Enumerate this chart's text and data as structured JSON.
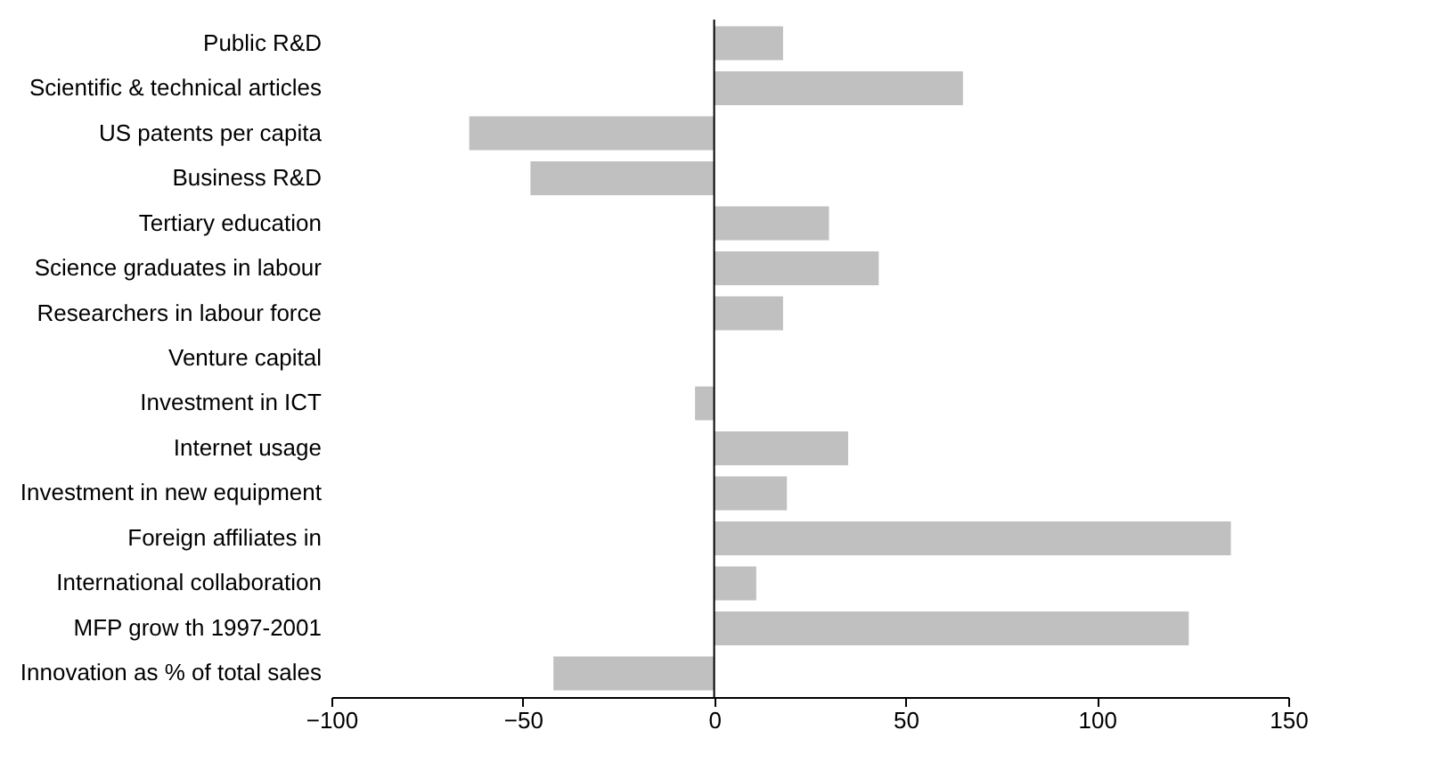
{
  "chart_data": {
    "type": "bar",
    "orientation": "horizontal",
    "categories": [
      "Public R&D",
      "Scientific & technical articles",
      "US patents per capita",
      "Business R&D",
      "Tertiary education",
      "Science graduates in labour",
      "Researchers in labour force",
      "Venture capital",
      "Investment in ICT",
      "Internet usage",
      "Investment in new equipment",
      "Foreign affiliates in",
      "International collaboration",
      "MFP grow th 1997-2001",
      "Innovation as % of total sales"
    ],
    "values": [
      18,
      65,
      -64,
      -48,
      30,
      43,
      18,
      0,
      -5,
      35,
      19,
      135,
      11,
      124,
      -42
    ],
    "color": "#c0c0c0",
    "xlim": [
      -100,
      150
    ],
    "xticks": [
      -100,
      -50,
      0,
      50,
      100,
      150
    ],
    "ref_lines": [
      {
        "axis": "x",
        "value": 0,
        "color": "#000000"
      }
    ],
    "grid": false
  }
}
